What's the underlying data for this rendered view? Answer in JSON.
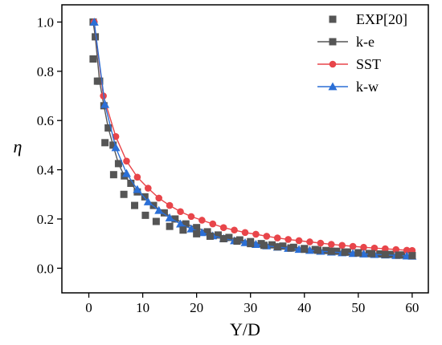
{
  "chart_data": {
    "type": "line",
    "xlabel": "Y/D",
    "ylabel": "η",
    "xlim": [
      -5,
      63
    ],
    "ylim": [
      -0.1,
      1.07
    ],
    "xticks": [
      0,
      10,
      20,
      30,
      40,
      50,
      60
    ],
    "yticks": [
      0.0,
      0.2,
      0.4,
      0.6,
      0.8,
      1.0
    ],
    "xtick_labels": [
      "0",
      "10",
      "20",
      "30",
      "40",
      "50",
      "60"
    ],
    "ytick_labels": [
      "0.0",
      "0.2",
      "0.4",
      "0.6",
      "0.8",
      "1.0"
    ],
    "legend_position": "top-right",
    "series": [
      {
        "name": "EXP[20]",
        "style": "scatter",
        "marker": "square",
        "color": "#555555",
        "x": [
          0.8,
          1.6,
          3.0,
          4.6,
          6.5,
          8.5,
          10.5,
          12.5,
          15.0,
          17.5,
          20.0,
          22.5,
          25.0,
          27.5,
          30.0,
          32.5,
          35.0,
          37.5,
          40.0,
          42.5,
          45.0,
          47.5,
          50.0,
          52.5,
          55.0,
          57.5,
          60.0
        ],
        "y": [
          0.85,
          0.76,
          0.51,
          0.38,
          0.3,
          0.255,
          0.215,
          0.19,
          0.17,
          0.155,
          0.14,
          0.13,
          0.12,
          0.11,
          0.1,
          0.093,
          0.087,
          0.082,
          0.077,
          0.073,
          0.069,
          0.065,
          0.062,
          0.059,
          0.056,
          0.053,
          0.051
        ]
      },
      {
        "name": "k-e",
        "style": "line-markers",
        "marker": "square",
        "color": "#555555",
        "x": [
          0.8,
          1.2,
          2.0,
          2.8,
          3.6,
          4.5,
          5.5,
          6.6,
          7.8,
          9.0,
          10.4,
          12.0,
          14.0,
          16.0,
          18.0,
          20.0,
          22.0,
          24.0,
          26.0,
          28.0,
          30.0,
          32.0,
          34.0,
          36.0,
          38.0,
          40.0,
          42.0,
          44.0,
          46.0,
          48.0,
          50.0,
          52.0,
          54.0,
          56.0,
          58.0,
          60.0
        ],
        "y": [
          1.0,
          0.94,
          0.76,
          0.66,
          0.57,
          0.5,
          0.425,
          0.375,
          0.345,
          0.31,
          0.29,
          0.255,
          0.225,
          0.2,
          0.18,
          0.165,
          0.148,
          0.135,
          0.125,
          0.115,
          0.108,
          0.1,
          0.095,
          0.09,
          0.085,
          0.08,
          0.076,
          0.072,
          0.069,
          0.066,
          0.063,
          0.06,
          0.058,
          0.056,
          0.054,
          0.052
        ]
      },
      {
        "name": "SST",
        "style": "line-markers",
        "marker": "circle",
        "color": "#e8454a",
        "x": [
          1.0,
          2.7,
          5.0,
          7.0,
          9.0,
          11.0,
          13.0,
          15.0,
          17.0,
          19.0,
          21.0,
          23.0,
          25.0,
          27.0,
          29.0,
          31.0,
          33.0,
          35.0,
          37.0,
          39.0,
          41.0,
          43.0,
          45.0,
          47.0,
          49.0,
          51.0,
          53.0,
          55.0,
          57.0,
          59.0,
          60.0
        ],
        "y": [
          1.0,
          0.7,
          0.535,
          0.435,
          0.37,
          0.325,
          0.285,
          0.255,
          0.23,
          0.21,
          0.195,
          0.18,
          0.165,
          0.155,
          0.145,
          0.138,
          0.13,
          0.123,
          0.117,
          0.112,
          0.107,
          0.102,
          0.097,
          0.093,
          0.089,
          0.085,
          0.082,
          0.079,
          0.076,
          0.073,
          0.072
        ]
      },
      {
        "name": "k-w",
        "style": "line-markers",
        "marker": "triangle",
        "color": "#2b6fd6",
        "x": [
          1.0,
          3.0,
          5.0,
          7.0,
          9.0,
          11.0,
          13.0,
          15.0,
          17.0,
          19.0,
          21.0,
          23.0,
          25.0,
          27.0,
          29.0,
          31.0,
          33.0,
          35.0,
          37.0,
          39.0,
          41.0,
          43.0,
          45.0,
          47.0,
          49.0,
          51.0,
          53.0,
          55.0,
          57.0,
          59.0,
          60.0
        ],
        "y": [
          1.0,
          0.665,
          0.49,
          0.385,
          0.32,
          0.27,
          0.235,
          0.205,
          0.18,
          0.16,
          0.145,
          0.132,
          0.121,
          0.112,
          0.104,
          0.097,
          0.091,
          0.086,
          0.081,
          0.077,
          0.073,
          0.069,
          0.066,
          0.063,
          0.06,
          0.058,
          0.056,
          0.054,
          0.052,
          0.05,
          0.049
        ]
      }
    ]
  }
}
